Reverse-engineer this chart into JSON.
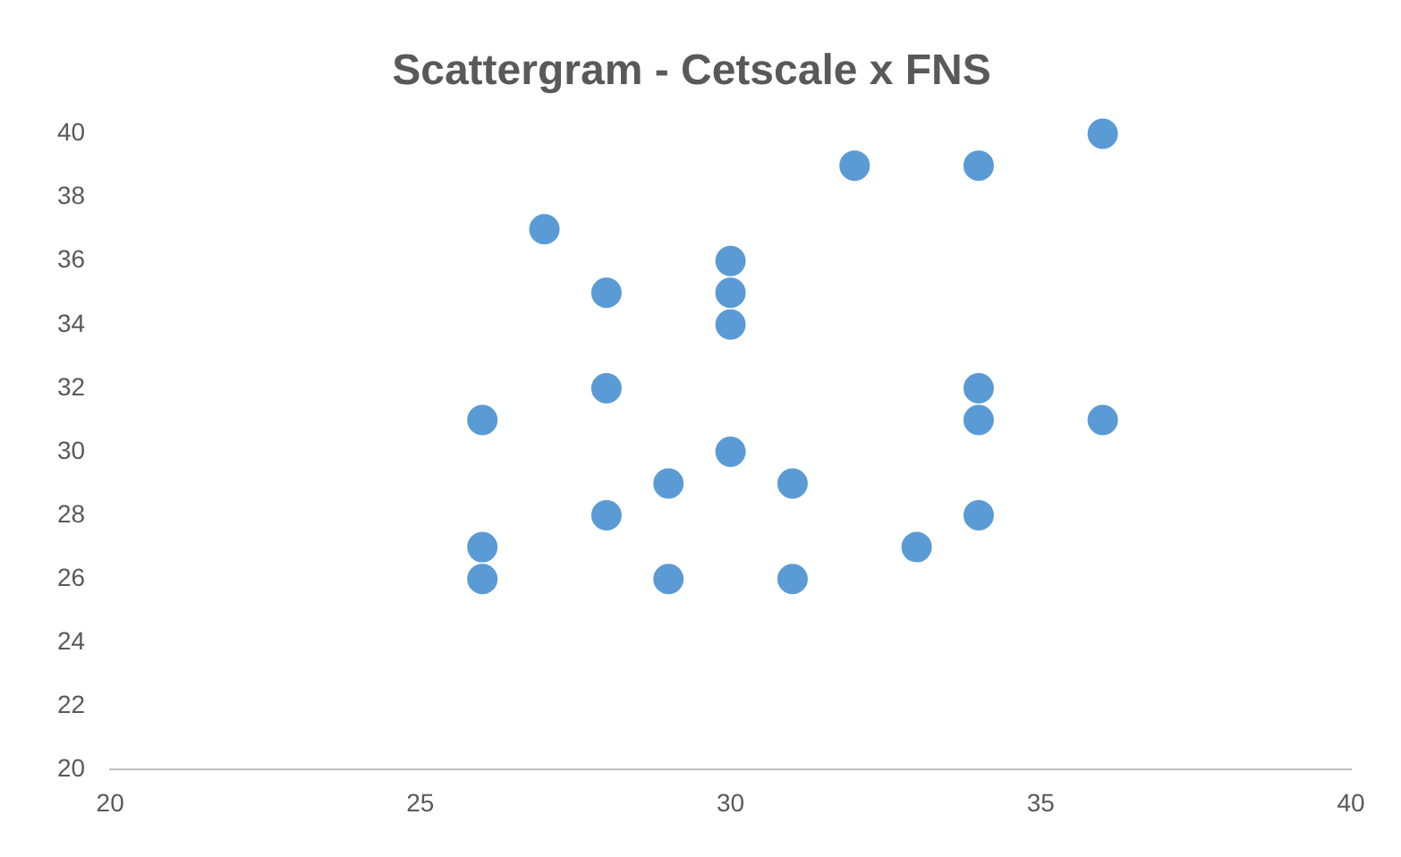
{
  "chart_data": {
    "type": "scatter",
    "title": "Scattergram - Cetscale x FNS",
    "marker": "circle",
    "xlim": [
      20,
      40
    ],
    "xticks": [
      20,
      25,
      30,
      35,
      40
    ],
    "ylim": [
      20,
      40
    ],
    "yticks": [
      20,
      22,
      24,
      26,
      28,
      30,
      32,
      34,
      36,
      38,
      40
    ],
    "series": [
      {
        "color": "#5b9bd5",
        "x": [
          26,
          26,
          26,
          27,
          28,
          28,
          28,
          29,
          29,
          30,
          30,
          30,
          30,
          31,
          31,
          32,
          33,
          34,
          34,
          34,
          34,
          36,
          36
        ],
        "values": [
          31,
          27,
          26,
          37,
          35,
          32,
          28,
          29,
          26,
          36,
          35,
          34,
          30,
          29,
          26,
          39,
          27,
          39,
          32,
          31,
          28,
          40,
          31
        ]
      }
    ]
  }
}
